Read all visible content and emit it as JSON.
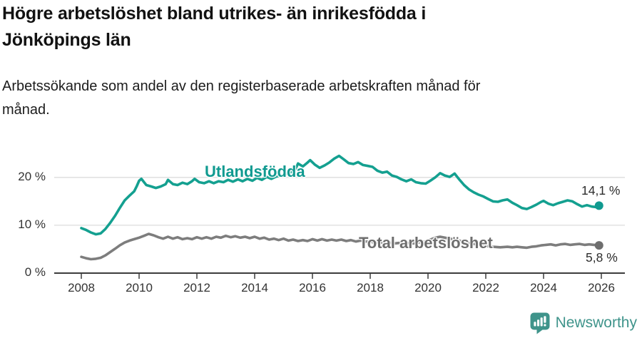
{
  "header": {
    "title": "Högre arbetslöshet bland utrikes- än inrikesfödda i Jönköpings län",
    "title_lines": [
      "Högre arbetslöshet bland utrikes- än inrikesfödda i",
      "Jönköpings län"
    ],
    "subtitle": "Arbetssökande som andel av den registerbaserade arbetskraften månad för månad.",
    "subtitle_lines": [
      "Arbetssökande som andel av den registerbaserade arbetskraften månad för",
      "månad."
    ]
  },
  "footer": {
    "brand": "Newsworthy",
    "brand_color": "#3f948b",
    "logo_icon": "newsworthy-bubble-chart-icon"
  },
  "colors": {
    "accent_teal": "#14a090",
    "series_gray": "#7d7d7d",
    "grid": "#dcdcdc",
    "axis": "#3c3c3c",
    "tick_text": "#333333",
    "value_text": "#2d2d2d"
  },
  "chart_data": {
    "type": "line",
    "title": "Högre arbetslöshet bland utrikes- än inrikesfödda i Jönköpings län",
    "subtitle": "Arbetssökande som andel av den registerbaserade arbetskraften månad för månad.",
    "xlabel": "",
    "ylabel": "",
    "grid": "horizontal",
    "legend": "inline-labels",
    "x_axis": {
      "ticks": [
        2008,
        2010,
        2012,
        2014,
        2016,
        2018,
        2020,
        2022,
        2024,
        2026
      ],
      "range": [
        2007.9,
        2026.8
      ]
    },
    "y_axis": {
      "tick_labels": [
        "0 %",
        "10 %",
        "20 %"
      ],
      "tick_values": [
        0,
        10,
        20
      ],
      "range": [
        0,
        26
      ],
      "unit": "%"
    },
    "series": [
      {
        "name": "Utlandsfödda",
        "color": "#14a090",
        "label_color": "#109a90",
        "end_label": "14,1 %",
        "end_value": 14.1,
        "points": [
          [
            2008.0,
            9.4
          ],
          [
            2008.17,
            9.0
          ],
          [
            2008.33,
            8.5
          ],
          [
            2008.5,
            8.1
          ],
          [
            2008.67,
            8.3
          ],
          [
            2008.83,
            9.2
          ],
          [
            2009.0,
            10.5
          ],
          [
            2009.17,
            12.0
          ],
          [
            2009.33,
            13.6
          ],
          [
            2009.5,
            15.2
          ],
          [
            2009.67,
            16.2
          ],
          [
            2009.83,
            17.1
          ],
          [
            2009.92,
            18.2
          ],
          [
            2010.0,
            19.3
          ],
          [
            2010.08,
            19.7
          ],
          [
            2010.25,
            18.4
          ],
          [
            2010.42,
            18.1
          ],
          [
            2010.58,
            17.8
          ],
          [
            2010.75,
            18.1
          ],
          [
            2010.92,
            18.6
          ],
          [
            2011.0,
            19.5
          ],
          [
            2011.17,
            18.6
          ],
          [
            2011.33,
            18.4
          ],
          [
            2011.5,
            18.9
          ],
          [
            2011.67,
            18.6
          ],
          [
            2011.83,
            19.2
          ],
          [
            2011.92,
            19.7
          ],
          [
            2012.08,
            19.0
          ],
          [
            2012.25,
            18.8
          ],
          [
            2012.42,
            19.2
          ],
          [
            2012.58,
            18.8
          ],
          [
            2012.75,
            19.2
          ],
          [
            2012.92,
            19.0
          ],
          [
            2013.08,
            19.5
          ],
          [
            2013.25,
            19.1
          ],
          [
            2013.42,
            19.6
          ],
          [
            2013.58,
            19.2
          ],
          [
            2013.75,
            19.7
          ],
          [
            2013.92,
            19.3
          ],
          [
            2014.08,
            19.9
          ],
          [
            2014.25,
            19.5
          ],
          [
            2014.42,
            20.1
          ],
          [
            2014.58,
            19.7
          ],
          [
            2014.75,
            20.2
          ],
          [
            2014.92,
            20.4
          ],
          [
            2015.08,
            20.7
          ],
          [
            2015.25,
            21.1
          ],
          [
            2015.42,
            21.8
          ],
          [
            2015.5,
            22.9
          ],
          [
            2015.67,
            22.3
          ],
          [
            2015.83,
            23.1
          ],
          [
            2015.92,
            23.6
          ],
          [
            2016.08,
            22.7
          ],
          [
            2016.25,
            22.0
          ],
          [
            2016.42,
            22.5
          ],
          [
            2016.58,
            23.1
          ],
          [
            2016.75,
            23.9
          ],
          [
            2016.92,
            24.5
          ],
          [
            2017.08,
            23.8
          ],
          [
            2017.25,
            23.0
          ],
          [
            2017.42,
            22.8
          ],
          [
            2017.58,
            23.2
          ],
          [
            2017.75,
            22.6
          ],
          [
            2017.92,
            22.4
          ],
          [
            2018.08,
            22.2
          ],
          [
            2018.25,
            21.4
          ],
          [
            2018.42,
            21.0
          ],
          [
            2018.58,
            21.2
          ],
          [
            2018.75,
            20.4
          ],
          [
            2018.92,
            20.1
          ],
          [
            2019.08,
            19.6
          ],
          [
            2019.25,
            19.2
          ],
          [
            2019.42,
            19.6
          ],
          [
            2019.58,
            19.0
          ],
          [
            2019.75,
            18.8
          ],
          [
            2019.92,
            18.7
          ],
          [
            2020.08,
            19.3
          ],
          [
            2020.25,
            20.0
          ],
          [
            2020.42,
            20.9
          ],
          [
            2020.58,
            20.4
          ],
          [
            2020.75,
            20.1
          ],
          [
            2020.92,
            20.8
          ],
          [
            2021.08,
            19.6
          ],
          [
            2021.25,
            18.4
          ],
          [
            2021.42,
            17.5
          ],
          [
            2021.58,
            16.9
          ],
          [
            2021.75,
            16.4
          ],
          [
            2021.92,
            16.0
          ],
          [
            2022.08,
            15.5
          ],
          [
            2022.25,
            15.0
          ],
          [
            2022.42,
            14.9
          ],
          [
            2022.58,
            15.2
          ],
          [
            2022.75,
            15.4
          ],
          [
            2022.92,
            14.7
          ],
          [
            2023.08,
            14.2
          ],
          [
            2023.25,
            13.6
          ],
          [
            2023.42,
            13.4
          ],
          [
            2023.58,
            13.8
          ],
          [
            2023.75,
            14.3
          ],
          [
            2023.92,
            14.9
          ],
          [
            2024.0,
            15.1
          ],
          [
            2024.17,
            14.5
          ],
          [
            2024.33,
            14.2
          ],
          [
            2024.5,
            14.6
          ],
          [
            2024.67,
            14.9
          ],
          [
            2024.83,
            15.2
          ],
          [
            2025.0,
            15.0
          ],
          [
            2025.17,
            14.4
          ],
          [
            2025.33,
            13.9
          ],
          [
            2025.5,
            14.2
          ],
          [
            2025.67,
            13.9
          ],
          [
            2025.83,
            13.8
          ],
          [
            2025.92,
            14.1
          ]
        ]
      },
      {
        "name": "Total arbetslöshet",
        "color": "#7d7d7d",
        "label_color": "#6e6e6e",
        "end_label": "5,8 %",
        "end_value": 5.8,
        "points": [
          [
            2008.0,
            3.4
          ],
          [
            2008.17,
            3.1
          ],
          [
            2008.33,
            2.9
          ],
          [
            2008.5,
            3.0
          ],
          [
            2008.67,
            3.2
          ],
          [
            2008.83,
            3.7
          ],
          [
            2009.0,
            4.4
          ],
          [
            2009.17,
            5.1
          ],
          [
            2009.33,
            5.8
          ],
          [
            2009.5,
            6.4
          ],
          [
            2009.67,
            6.8
          ],
          [
            2009.83,
            7.1
          ],
          [
            2010.0,
            7.4
          ],
          [
            2010.17,
            7.8
          ],
          [
            2010.33,
            8.2
          ],
          [
            2010.5,
            7.9
          ],
          [
            2010.67,
            7.5
          ],
          [
            2010.83,
            7.2
          ],
          [
            2011.0,
            7.6
          ],
          [
            2011.17,
            7.2
          ],
          [
            2011.33,
            7.5
          ],
          [
            2011.5,
            7.1
          ],
          [
            2011.67,
            7.3
          ],
          [
            2011.83,
            7.1
          ],
          [
            2012.0,
            7.5
          ],
          [
            2012.17,
            7.2
          ],
          [
            2012.33,
            7.5
          ],
          [
            2012.5,
            7.2
          ],
          [
            2012.67,
            7.6
          ],
          [
            2012.83,
            7.4
          ],
          [
            2013.0,
            7.8
          ],
          [
            2013.17,
            7.5
          ],
          [
            2013.33,
            7.7
          ],
          [
            2013.5,
            7.4
          ],
          [
            2013.67,
            7.6
          ],
          [
            2013.83,
            7.3
          ],
          [
            2014.0,
            7.6
          ],
          [
            2014.17,
            7.2
          ],
          [
            2014.33,
            7.4
          ],
          [
            2014.5,
            7.0
          ],
          [
            2014.67,
            7.2
          ],
          [
            2014.83,
            6.9
          ],
          [
            2015.0,
            7.2
          ],
          [
            2015.17,
            6.8
          ],
          [
            2015.33,
            7.0
          ],
          [
            2015.5,
            6.7
          ],
          [
            2015.67,
            6.9
          ],
          [
            2015.83,
            6.7
          ],
          [
            2016.0,
            7.1
          ],
          [
            2016.17,
            6.8
          ],
          [
            2016.33,
            7.1
          ],
          [
            2016.5,
            6.8
          ],
          [
            2016.67,
            7.0
          ],
          [
            2016.83,
            6.8
          ],
          [
            2017.0,
            7.0
          ],
          [
            2017.17,
            6.7
          ],
          [
            2017.33,
            6.9
          ],
          [
            2017.5,
            6.6
          ],
          [
            2017.67,
            6.8
          ],
          [
            2017.83,
            6.6
          ],
          [
            2018.0,
            6.6
          ],
          [
            2018.17,
            6.3
          ],
          [
            2018.33,
            6.5
          ],
          [
            2018.5,
            6.2
          ],
          [
            2018.67,
            6.4
          ],
          [
            2018.83,
            6.2
          ],
          [
            2019.0,
            6.3
          ],
          [
            2019.17,
            6.1
          ],
          [
            2019.33,
            6.3
          ],
          [
            2019.5,
            6.2
          ],
          [
            2019.67,
            6.4
          ],
          [
            2019.83,
            6.5
          ],
          [
            2020.0,
            6.8
          ],
          [
            2020.25,
            7.4
          ],
          [
            2020.42,
            7.6
          ],
          [
            2020.58,
            7.4
          ],
          [
            2020.75,
            7.2
          ],
          [
            2020.92,
            7.0
          ],
          [
            2021.08,
            6.8
          ],
          [
            2021.25,
            6.5
          ],
          [
            2021.5,
            6.2
          ],
          [
            2021.75,
            5.9
          ],
          [
            2021.92,
            5.7
          ],
          [
            2022.08,
            5.6
          ],
          [
            2022.25,
            5.5
          ],
          [
            2022.5,
            5.4
          ],
          [
            2022.75,
            5.5
          ],
          [
            2022.92,
            5.4
          ],
          [
            2023.08,
            5.5
          ],
          [
            2023.25,
            5.4
          ],
          [
            2023.42,
            5.3
          ],
          [
            2023.58,
            5.5
          ],
          [
            2023.75,
            5.6
          ],
          [
            2023.92,
            5.8
          ],
          [
            2024.08,
            5.9
          ],
          [
            2024.25,
            6.0
          ],
          [
            2024.42,
            5.8
          ],
          [
            2024.58,
            6.0
          ],
          [
            2024.75,
            6.1
          ],
          [
            2024.92,
            5.9
          ],
          [
            2025.08,
            6.0
          ],
          [
            2025.25,
            6.1
          ],
          [
            2025.42,
            5.9
          ],
          [
            2025.58,
            6.0
          ],
          [
            2025.75,
            5.9
          ],
          [
            2025.92,
            5.8
          ]
        ]
      }
    ]
  }
}
